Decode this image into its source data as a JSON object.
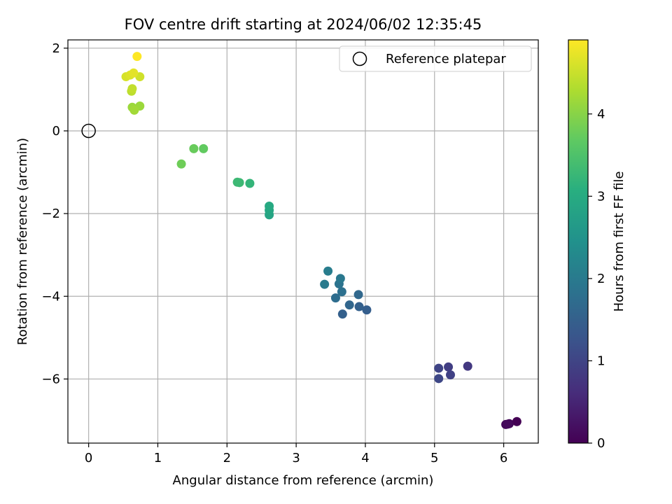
{
  "chart_data": {
    "type": "scatter",
    "title": "FOV centre drift starting at 2024/06/02 12:35:45",
    "xlabel": "Angular distance from reference (arcmin)",
    "ylabel": "Rotation from reference (arcmin)",
    "xlim": [
      -0.3,
      6.5
    ],
    "ylim": [
      -7.55,
      2.2
    ],
    "xticks": [
      0,
      1,
      2,
      3,
      4,
      5,
      6
    ],
    "yticks": [
      -6,
      -4,
      -2,
      0,
      2
    ],
    "xtick_labels": [
      "0",
      "1",
      "2",
      "3",
      "4",
      "5",
      "6"
    ],
    "ytick_labels": [
      "−6",
      "−4",
      "−2",
      "0",
      "2"
    ],
    "grid": true,
    "legend": {
      "placement": "top-right",
      "entries": [
        "Reference platepar"
      ]
    },
    "reference_point": {
      "x": 0,
      "y": 0
    },
    "colorbar": {
      "label": "Hours from first FF file",
      "colormap": "viridis",
      "range": [
        0,
        4.9
      ],
      "ticks": [
        0,
        1,
        2,
        3,
        4
      ],
      "tick_labels": [
        "0",
        "1",
        "2",
        "3",
        "4"
      ]
    },
    "points": [
      {
        "x": 6.19,
        "y": -7.03,
        "c": 0.0
      },
      {
        "x": 6.08,
        "y": -7.08,
        "c": 0.05
      },
      {
        "x": 6.03,
        "y": -7.1,
        "c": 0.1
      },
      {
        "x": 6.06,
        "y": -7.09,
        "c": 0.12
      },
      {
        "x": 5.48,
        "y": -5.69,
        "c": 0.8
      },
      {
        "x": 5.2,
        "y": -5.71,
        "c": 0.9
      },
      {
        "x": 5.23,
        "y": -5.9,
        "c": 0.95
      },
      {
        "x": 5.06,
        "y": -5.74,
        "c": 1.0
      },
      {
        "x": 5.06,
        "y": -5.99,
        "c": 1.05
      },
      {
        "x": 4.02,
        "y": -4.33,
        "c": 1.45
      },
      {
        "x": 3.91,
        "y": -4.25,
        "c": 1.5
      },
      {
        "x": 3.67,
        "y": -4.43,
        "c": 1.5
      },
      {
        "x": 3.77,
        "y": -4.21,
        "c": 1.6
      },
      {
        "x": 3.9,
        "y": -3.96,
        "c": 1.65
      },
      {
        "x": 3.57,
        "y": -4.04,
        "c": 1.75
      },
      {
        "x": 3.66,
        "y": -3.89,
        "c": 1.8
      },
      {
        "x": 3.62,
        "y": -3.7,
        "c": 1.85
      },
      {
        "x": 3.64,
        "y": -3.57,
        "c": 1.95
      },
      {
        "x": 3.41,
        "y": -3.71,
        "c": 2.0
      },
      {
        "x": 3.46,
        "y": -3.39,
        "c": 2.05
      },
      {
        "x": 2.61,
        "y": -2.03,
        "c": 2.85
      },
      {
        "x": 2.61,
        "y": -1.92,
        "c": 2.9
      },
      {
        "x": 2.61,
        "y": -1.82,
        "c": 2.95
      },
      {
        "x": 2.33,
        "y": -1.27,
        "c": 3.2
      },
      {
        "x": 2.18,
        "y": -1.25,
        "c": 3.3
      },
      {
        "x": 2.15,
        "y": -1.24,
        "c": 3.3
      },
      {
        "x": 1.34,
        "y": -0.8,
        "c": 3.8
      },
      {
        "x": 1.52,
        "y": -0.43,
        "c": 3.75
      },
      {
        "x": 1.66,
        "y": -0.43,
        "c": 3.7
      },
      {
        "x": 0.74,
        "y": 0.6,
        "c": 4.15
      },
      {
        "x": 0.63,
        "y": 0.57,
        "c": 4.15
      },
      {
        "x": 0.66,
        "y": 0.5,
        "c": 4.2
      },
      {
        "x": 0.62,
        "y": 0.96,
        "c": 4.4
      },
      {
        "x": 0.63,
        "y": 1.02,
        "c": 4.45
      },
      {
        "x": 0.74,
        "y": 1.31,
        "c": 4.55
      },
      {
        "x": 0.54,
        "y": 1.31,
        "c": 4.6
      },
      {
        "x": 0.6,
        "y": 1.35,
        "c": 4.65
      },
      {
        "x": 0.65,
        "y": 1.4,
        "c": 4.7
      },
      {
        "x": 0.7,
        "y": 1.8,
        "c": 4.9
      }
    ]
  }
}
